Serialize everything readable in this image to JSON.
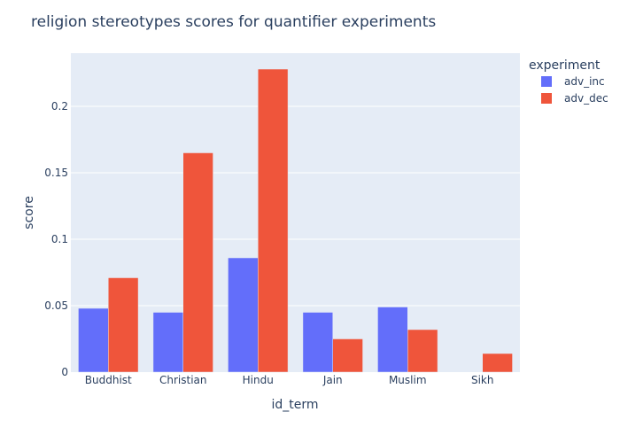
{
  "chart_data": {
    "type": "bar",
    "title": "religion stereotypes scores for quantifier experiments",
    "xlabel": "id_term",
    "ylabel": "score",
    "categories": [
      "Buddhist",
      "Christian",
      "Hindu",
      "Jain",
      "Muslim",
      "Sikh"
    ],
    "series": [
      {
        "name": "adv_inc",
        "color": "#636efa",
        "values": [
          0.048,
          0.045,
          0.086,
          0.045,
          0.049,
          null
        ]
      },
      {
        "name": "adv_dec",
        "color": "#ef553b",
        "values": [
          0.071,
          0.165,
          0.228,
          0.025,
          0.032,
          0.014
        ]
      }
    ],
    "ylim": [
      0,
      0.24
    ],
    "yticks": [
      0,
      0.05,
      0.1,
      0.15,
      0.2
    ],
    "ytick_labels": [
      "0",
      "0.05",
      "0.1",
      "0.15",
      "0.2"
    ],
    "grid": true,
    "legend": {
      "title": "experiment",
      "placement": "top-right"
    },
    "plot_background": "#e5ecf6"
  }
}
